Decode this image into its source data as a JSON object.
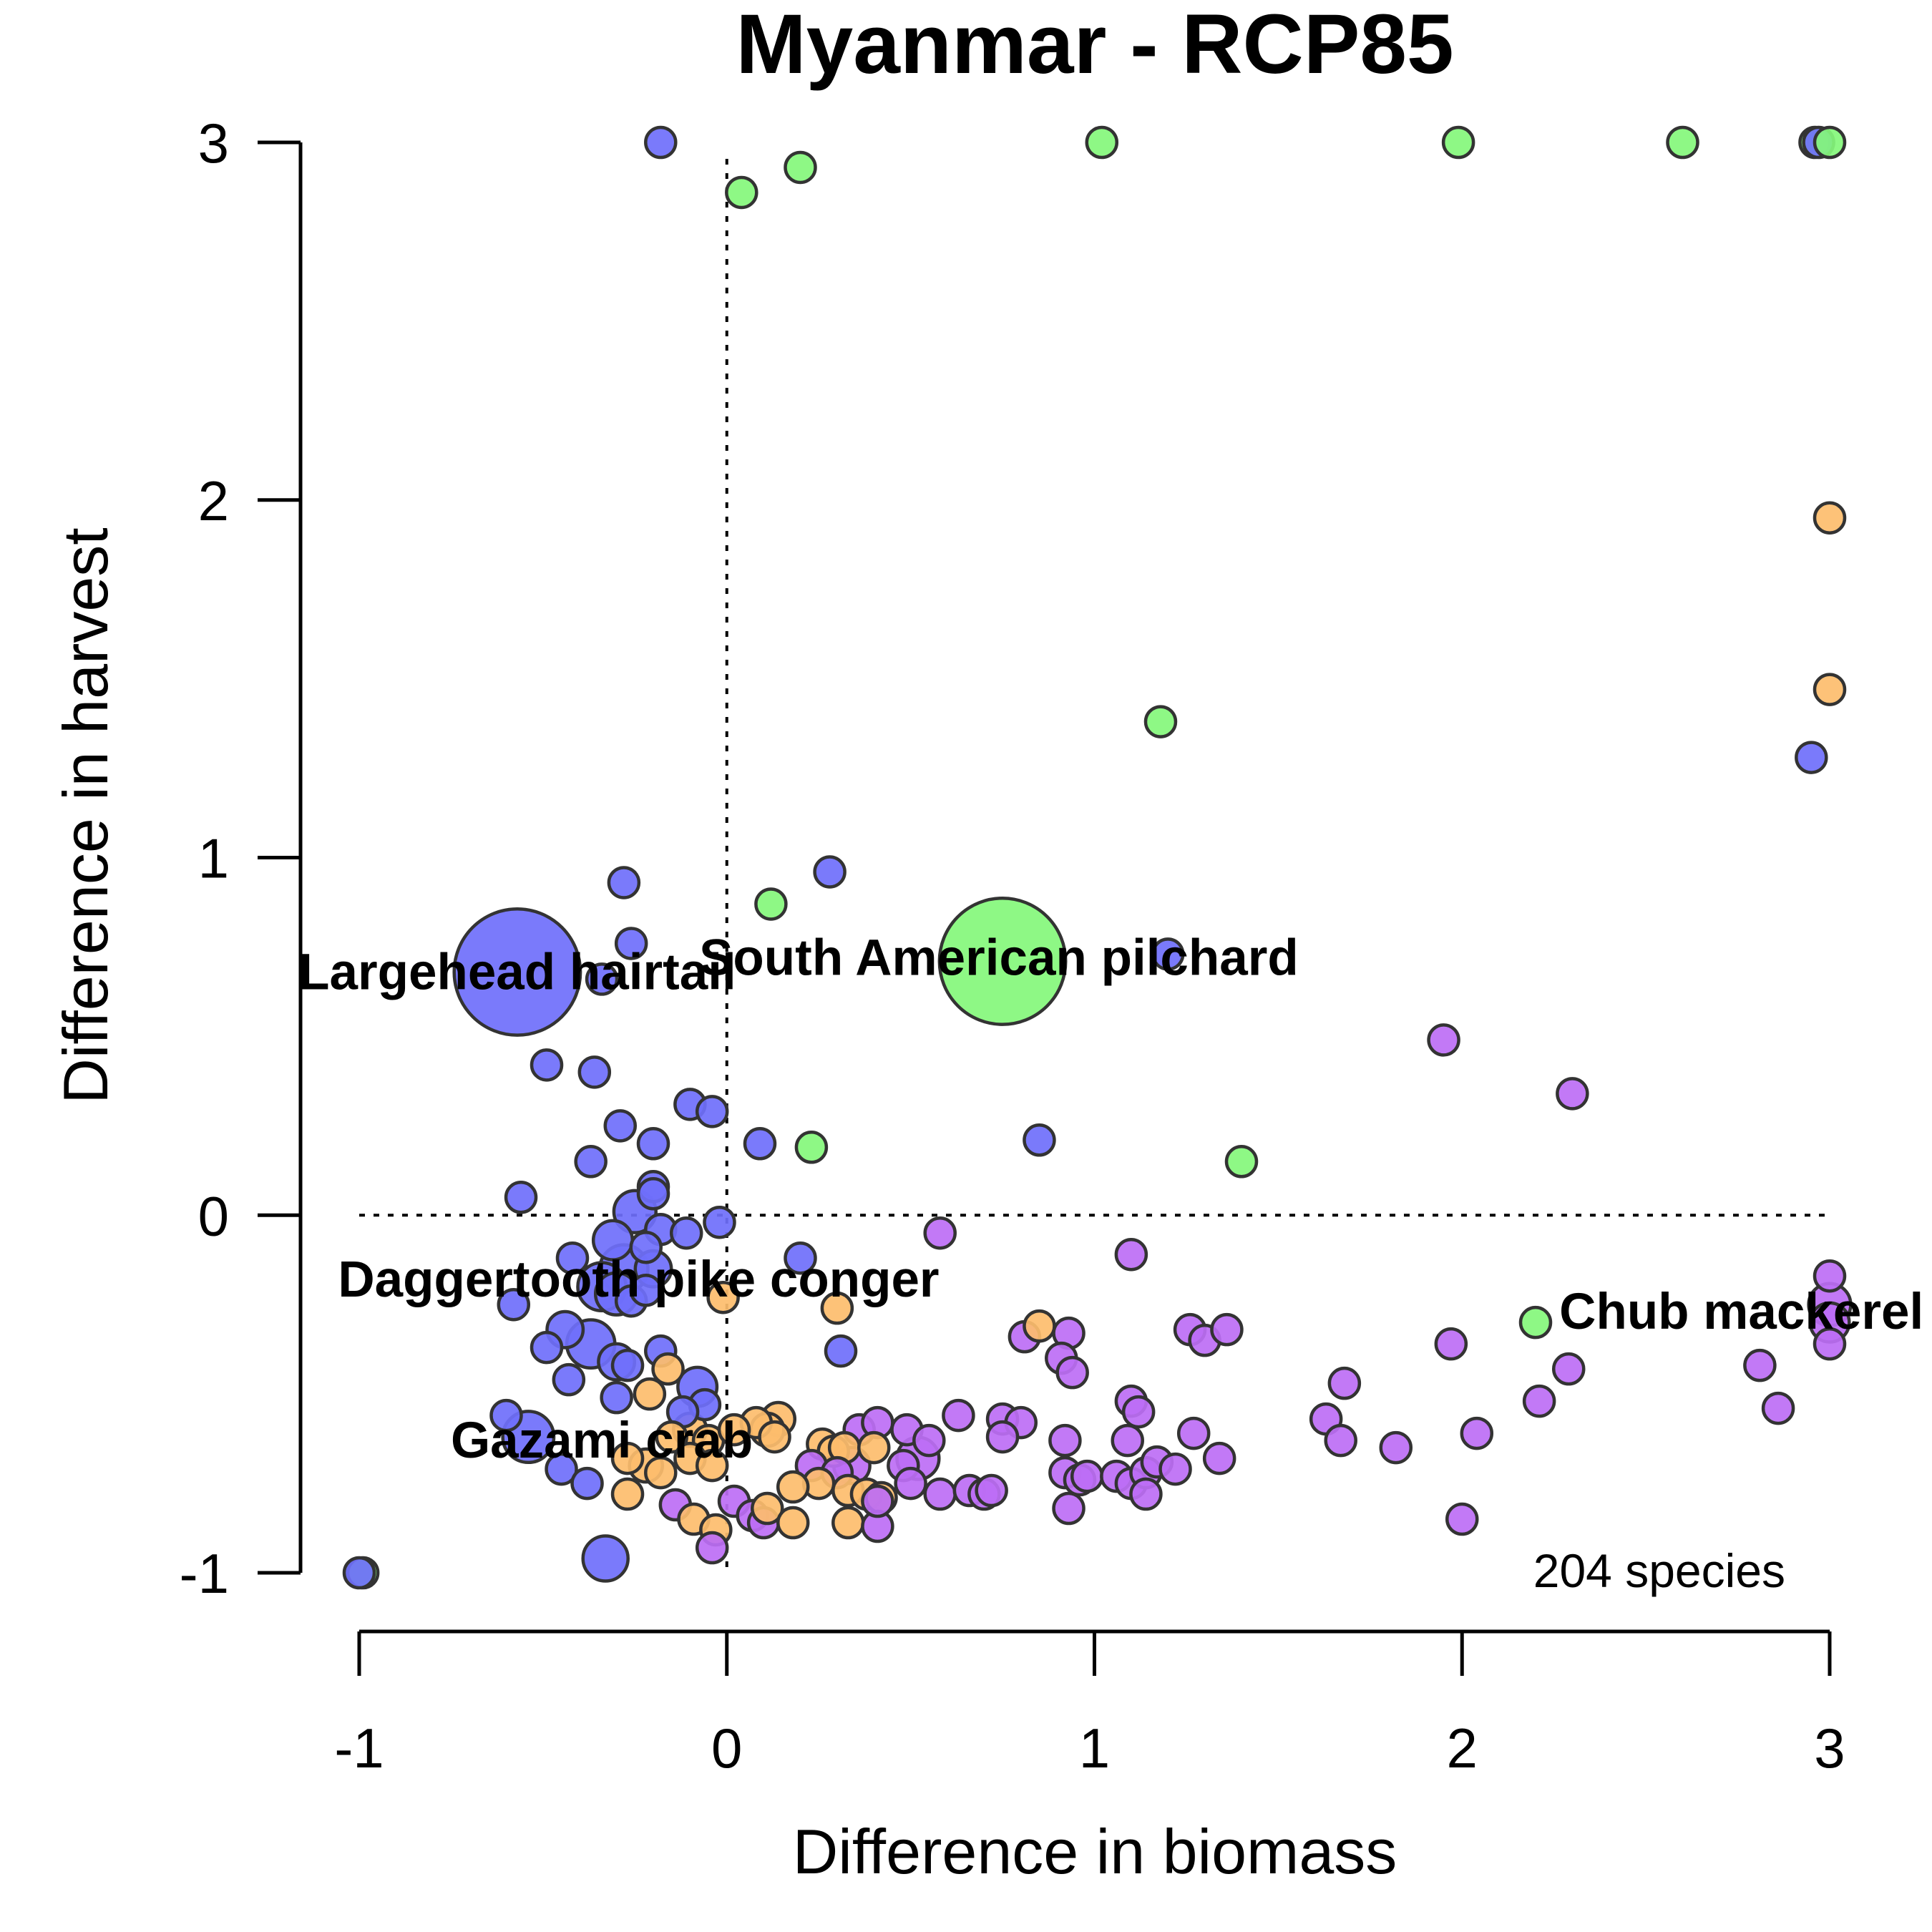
{
  "chart_data": {
    "type": "scatter",
    "title": "Myanmar - RCP85",
    "xlabel": "Difference in biomass",
    "ylabel": "Difference in harvest",
    "xlim": [
      -1,
      3
    ],
    "ylim": [
      -1,
      3
    ],
    "xticks": [
      "-1",
      "0",
      "1",
      "2",
      "3"
    ],
    "yticks": [
      "-1",
      "0",
      "1",
      "2",
      "3"
    ],
    "reference_lines": {
      "x": 0,
      "y": 0,
      "style": "dotted"
    },
    "note": "204 species",
    "colors": {
      "blue": "#6f6ffb",
      "green": "#84f77b",
      "orange": "#fdbd6d",
      "purple": "#bd6ef5",
      "outline": "#333333"
    },
    "annotations": [
      {
        "text": "Largehead hairtail",
        "x": -0.57,
        "y": 0.68
      },
      {
        "text": "South American pilchard",
        "x": 0.74,
        "y": 0.72
      },
      {
        "text": "Daggertooth pike conger",
        "x": -0.24,
        "y": -0.18
      },
      {
        "text": "Gazami crab",
        "x": -0.34,
        "y": -0.63
      },
      {
        "text": "Chub mackerel",
        "x": 2.76,
        "y": -0.27
      }
    ],
    "points": [
      {
        "x": -0.18,
        "y": 3.0,
        "c": "blue",
        "s": 1
      },
      {
        "x": 0.04,
        "y": 2.86,
        "c": "green",
        "s": 1
      },
      {
        "x": 0.2,
        "y": 2.93,
        "c": "green",
        "s": 1
      },
      {
        "x": 1.02,
        "y": 3.0,
        "c": "green",
        "s": 1
      },
      {
        "x": 1.99,
        "y": 3.0,
        "c": "green",
        "s": 1
      },
      {
        "x": 2.6,
        "y": 3.0,
        "c": "green",
        "s": 1
      },
      {
        "x": 2.96,
        "y": 3.0,
        "c": "green",
        "s": 1
      },
      {
        "x": 2.97,
        "y": 3.0,
        "c": "blue",
        "s": 1
      },
      {
        "x": 3.0,
        "y": 3.0,
        "c": "green",
        "s": 1
      },
      {
        "x": 3.0,
        "y": 1.95,
        "c": "orange",
        "s": 1
      },
      {
        "x": 3.0,
        "y": 1.47,
        "c": "orange",
        "s": 1
      },
      {
        "x": 2.95,
        "y": 1.28,
        "c": "blue",
        "s": 1
      },
      {
        "x": 1.18,
        "y": 1.38,
        "c": "green",
        "s": 1
      },
      {
        "x": -0.57,
        "y": 0.68,
        "c": "blue",
        "s": 4.2
      },
      {
        "x": 0.75,
        "y": 0.71,
        "c": "green",
        "s": 4.2
      },
      {
        "x": -0.28,
        "y": 0.93,
        "c": "blue",
        "s": 1
      },
      {
        "x": 0.28,
        "y": 0.96,
        "c": "blue",
        "s": 1
      },
      {
        "x": 0.12,
        "y": 0.87,
        "c": "green",
        "s": 1
      },
      {
        "x": -0.26,
        "y": 0.76,
        "c": "blue",
        "s": 1
      },
      {
        "x": 1.2,
        "y": 0.73,
        "c": "blue",
        "s": 1
      },
      {
        "x": -0.34,
        "y": 0.66,
        "c": "blue",
        "s": 1
      },
      {
        "x": 1.95,
        "y": 0.49,
        "c": "purple",
        "s": 1
      },
      {
        "x": 2.3,
        "y": 0.34,
        "c": "purple",
        "s": 1
      },
      {
        "x": -0.49,
        "y": 0.42,
        "c": "blue",
        "s": 1
      },
      {
        "x": -0.36,
        "y": 0.4,
        "c": "blue",
        "s": 1
      },
      {
        "x": -0.1,
        "y": 0.31,
        "c": "blue",
        "s": 1
      },
      {
        "x": -0.04,
        "y": 0.29,
        "c": "blue",
        "s": 1
      },
      {
        "x": -0.29,
        "y": 0.25,
        "c": "blue",
        "s": 1
      },
      {
        "x": -0.2,
        "y": 0.2,
        "c": "blue",
        "s": 1
      },
      {
        "x": 0.09,
        "y": 0.2,
        "c": "blue",
        "s": 1
      },
      {
        "x": 0.23,
        "y": 0.19,
        "c": "green",
        "s": 1
      },
      {
        "x": 0.85,
        "y": 0.21,
        "c": "blue",
        "s": 1
      },
      {
        "x": 1.4,
        "y": 0.15,
        "c": "green",
        "s": 1
      },
      {
        "x": -0.37,
        "y": 0.15,
        "c": "blue",
        "s": 1
      },
      {
        "x": -0.2,
        "y": 0.08,
        "c": "blue",
        "s": 1
      },
      {
        "x": -0.2,
        "y": 0.06,
        "c": "blue",
        "s": 1
      },
      {
        "x": -0.56,
        "y": 0.05,
        "c": "blue",
        "s": 1
      },
      {
        "x": -0.25,
        "y": 0.01,
        "c": "blue",
        "s": 1.4
      },
      {
        "x": -0.02,
        "y": -0.02,
        "c": "blue",
        "s": 1
      },
      {
        "x": -0.18,
        "y": -0.04,
        "c": "blue",
        "s": 1
      },
      {
        "x": -0.11,
        "y": -0.05,
        "c": "blue",
        "s": 1
      },
      {
        "x": -0.31,
        "y": -0.07,
        "c": "blue",
        "s": 1.3
      },
      {
        "x": -0.22,
        "y": -0.09,
        "c": "blue",
        "s": 1
      },
      {
        "x": 0.58,
        "y": -0.05,
        "c": "purple",
        "s": 1
      },
      {
        "x": -0.42,
        "y": -0.12,
        "c": "blue",
        "s": 1
      },
      {
        "x": 0.2,
        "y": -0.12,
        "c": "blue",
        "s": 1
      },
      {
        "x": 1.1,
        "y": -0.11,
        "c": "purple",
        "s": 1
      },
      {
        "x": -0.28,
        "y": -0.15,
        "c": "blue",
        "s": 1.6
      },
      {
        "x": -0.2,
        "y": -0.15,
        "c": "blue",
        "s": 1.2
      },
      {
        "x": -0.34,
        "y": -0.2,
        "c": "blue",
        "s": 1.6
      },
      {
        "x": -0.3,
        "y": -0.22,
        "c": "blue",
        "s": 1.4
      },
      {
        "x": -0.26,
        "y": -0.24,
        "c": "blue",
        "s": 1
      },
      {
        "x": -0.22,
        "y": -0.21,
        "c": "blue",
        "s": 1
      },
      {
        "x": -0.58,
        "y": -0.25,
        "c": "blue",
        "s": 1
      },
      {
        "x": -0.01,
        "y": -0.23,
        "c": "orange",
        "s": 1
      },
      {
        "x": 0.3,
        "y": -0.26,
        "c": "orange",
        "s": 1
      },
      {
        "x": -0.44,
        "y": -0.32,
        "c": "blue",
        "s": 1.2
      },
      {
        "x": -0.37,
        "y": -0.36,
        "c": "blue",
        "s": 1.6
      },
      {
        "x": -0.49,
        "y": -0.37,
        "c": "blue",
        "s": 1
      },
      {
        "x": -0.3,
        "y": -0.41,
        "c": "blue",
        "s": 1.2
      },
      {
        "x": -0.27,
        "y": -0.42,
        "c": "blue",
        "s": 1
      },
      {
        "x": -0.18,
        "y": -0.38,
        "c": "blue",
        "s": 1
      },
      {
        "x": -0.16,
        "y": -0.43,
        "c": "orange",
        "s": 1
      },
      {
        "x": 0.31,
        "y": -0.38,
        "c": "blue",
        "s": 1
      },
      {
        "x": 0.81,
        "y": -0.34,
        "c": "purple",
        "s": 1
      },
      {
        "x": 0.85,
        "y": -0.31,
        "c": "orange",
        "s": 1
      },
      {
        "x": 0.93,
        "y": -0.33,
        "c": "purple",
        "s": 1
      },
      {
        "x": 0.91,
        "y": -0.4,
        "c": "purple",
        "s": 1
      },
      {
        "x": 0.94,
        "y": -0.44,
        "c": "purple",
        "s": 1
      },
      {
        "x": 1.26,
        "y": -0.32,
        "c": "purple",
        "s": 1
      },
      {
        "x": 1.3,
        "y": -0.35,
        "c": "purple",
        "s": 1
      },
      {
        "x": 1.36,
        "y": -0.32,
        "c": "purple",
        "s": 1
      },
      {
        "x": 1.68,
        "y": -0.47,
        "c": "purple",
        "s": 1
      },
      {
        "x": 1.97,
        "y": -0.36,
        "c": "purple",
        "s": 1
      },
      {
        "x": 2.2,
        "y": -0.3,
        "c": "green",
        "s": 1
      },
      {
        "x": 2.29,
        "y": -0.43,
        "c": "purple",
        "s": 1
      },
      {
        "x": 2.21,
        "y": -0.52,
        "c": "purple",
        "s": 1
      },
      {
        "x": 2.81,
        "y": -0.42,
        "c": "purple",
        "s": 1
      },
      {
        "x": 2.86,
        "y": -0.54,
        "c": "purple",
        "s": 1
      },
      {
        "x": 3.0,
        "y": -0.17,
        "c": "purple",
        "s": 1
      },
      {
        "x": 3.0,
        "y": -0.25,
        "c": "purple",
        "s": 1.4
      },
      {
        "x": 3.0,
        "y": -0.3,
        "c": "purple",
        "s": 1.3
      },
      {
        "x": 3.0,
        "y": -0.36,
        "c": "purple",
        "s": 1
      },
      {
        "x": -0.43,
        "y": -0.46,
        "c": "blue",
        "s": 1
      },
      {
        "x": -0.3,
        "y": -0.51,
        "c": "blue",
        "s": 1
      },
      {
        "x": -0.21,
        "y": -0.5,
        "c": "orange",
        "s": 1
      },
      {
        "x": -0.08,
        "y": -0.48,
        "c": "blue",
        "s": 1.3
      },
      {
        "x": -0.06,
        "y": -0.53,
        "c": "blue",
        "s": 1
      },
      {
        "x": -0.12,
        "y": -0.55,
        "c": "blue",
        "s": 1
      },
      {
        "x": -0.6,
        "y": -0.56,
        "c": "blue",
        "s": 1
      },
      {
        "x": -0.54,
        "y": -0.62,
        "c": "blue",
        "s": 1.7
      },
      {
        "x": 0.08,
        "y": -0.58,
        "c": "orange",
        "s": 1
      },
      {
        "x": 0.14,
        "y": -0.57,
        "c": "orange",
        "s": 1.1
      },
      {
        "x": 0.11,
        "y": -0.6,
        "c": "orange",
        "s": 1.1
      },
      {
        "x": 0.13,
        "y": -0.62,
        "c": "orange",
        "s": 1
      },
      {
        "x": 0.36,
        "y": -0.6,
        "c": "purple",
        "s": 1
      },
      {
        "x": 0.41,
        "y": -0.58,
        "c": "purple",
        "s": 1
      },
      {
        "x": 0.49,
        "y": -0.6,
        "c": "purple",
        "s": 1
      },
      {
        "x": 0.55,
        "y": -0.63,
        "c": "purple",
        "s": 1
      },
      {
        "x": 0.63,
        "y": -0.56,
        "c": "purple",
        "s": 1
      },
      {
        "x": 0.75,
        "y": -0.57,
        "c": "purple",
        "s": 1
      },
      {
        "x": 0.8,
        "y": -0.58,
        "c": "purple",
        "s": 1
      },
      {
        "x": 0.75,
        "y": -0.62,
        "c": "purple",
        "s": 1
      },
      {
        "x": 1.1,
        "y": -0.52,
        "c": "purple",
        "s": 1
      },
      {
        "x": 1.12,
        "y": -0.55,
        "c": "purple",
        "s": 1
      },
      {
        "x": 1.27,
        "y": -0.61,
        "c": "purple",
        "s": 1
      },
      {
        "x": 1.63,
        "y": -0.57,
        "c": "purple",
        "s": 1
      },
      {
        "x": 1.67,
        "y": -0.63,
        "c": "purple",
        "s": 1
      },
      {
        "x": 1.82,
        "y": -0.65,
        "c": "purple",
        "s": 1
      },
      {
        "x": 2.04,
        "y": -0.61,
        "c": "purple",
        "s": 1
      },
      {
        "x": -0.15,
        "y": -0.62,
        "c": "orange",
        "s": 1
      },
      {
        "x": -0.1,
        "y": -0.6,
        "c": "orange",
        "s": 1.1
      },
      {
        "x": -0.05,
        "y": -0.63,
        "c": "orange",
        "s": 1
      },
      {
        "x": 0.02,
        "y": -0.6,
        "c": "orange",
        "s": 1
      },
      {
        "x": -0.27,
        "y": -0.68,
        "c": "orange",
        "s": 1
      },
      {
        "x": -0.22,
        "y": -0.7,
        "c": "orange",
        "s": 1.1
      },
      {
        "x": -0.18,
        "y": -0.72,
        "c": "orange",
        "s": 1
      },
      {
        "x": -0.1,
        "y": -0.68,
        "c": "orange",
        "s": 1
      },
      {
        "x": -0.04,
        "y": -0.7,
        "c": "orange",
        "s": 1
      },
      {
        "x": 0.26,
        "y": -0.64,
        "c": "orange",
        "s": 1
      },
      {
        "x": 0.29,
        "y": -0.66,
        "c": "orange",
        "s": 1
      },
      {
        "x": 0.32,
        "y": -0.65,
        "c": "orange",
        "s": 1
      },
      {
        "x": 0.4,
        "y": -0.65,
        "c": "orange",
        "s": 1
      },
      {
        "x": 0.23,
        "y": -0.7,
        "c": "purple",
        "s": 1
      },
      {
        "x": 0.3,
        "y": -0.72,
        "c": "purple",
        "s": 1
      },
      {
        "x": 0.34,
        "y": -0.7,
        "c": "purple",
        "s": 1.2
      },
      {
        "x": 0.25,
        "y": -0.75,
        "c": "orange",
        "s": 1
      },
      {
        "x": 0.18,
        "y": -0.76,
        "c": "orange",
        "s": 1
      },
      {
        "x": 0.33,
        "y": -0.77,
        "c": "orange",
        "s": 1
      },
      {
        "x": 0.38,
        "y": -0.78,
        "c": "orange",
        "s": 1
      },
      {
        "x": 0.42,
        "y": -0.79,
        "c": "orange",
        "s": 1
      },
      {
        "x": 0.48,
        "y": -0.7,
        "c": "purple",
        "s": 1
      },
      {
        "x": 0.52,
        "y": -0.68,
        "c": "purple",
        "s": 1.4
      },
      {
        "x": 0.5,
        "y": -0.75,
        "c": "purple",
        "s": 1
      },
      {
        "x": 0.58,
        "y": -0.78,
        "c": "purple",
        "s": 1
      },
      {
        "x": 0.66,
        "y": -0.77,
        "c": "purple",
        "s": 1
      },
      {
        "x": 0.7,
        "y": -0.78,
        "c": "purple",
        "s": 1
      },
      {
        "x": 0.72,
        "y": -0.77,
        "c": "purple",
        "s": 1
      },
      {
        "x": 0.92,
        "y": -0.72,
        "c": "purple",
        "s": 1
      },
      {
        "x": 0.96,
        "y": -0.74,
        "c": "purple",
        "s": 1
      },
      {
        "x": 0.98,
        "y": -0.73,
        "c": "purple",
        "s": 1
      },
      {
        "x": 1.06,
        "y": -0.73,
        "c": "purple",
        "s": 1
      },
      {
        "x": 1.1,
        "y": -0.75,
        "c": "purple",
        "s": 1
      },
      {
        "x": 1.14,
        "y": -0.72,
        "c": "purple",
        "s": 1
      },
      {
        "x": 1.17,
        "y": -0.69,
        "c": "purple",
        "s": 1
      },
      {
        "x": 1.22,
        "y": -0.71,
        "c": "purple",
        "s": 1
      },
      {
        "x": 1.14,
        "y": -0.78,
        "c": "purple",
        "s": 1
      },
      {
        "x": 1.34,
        "y": -0.68,
        "c": "purple",
        "s": 1
      },
      {
        "x": 0.93,
        "y": -0.82,
        "c": "purple",
        "s": 1
      },
      {
        "x": 1.09,
        "y": -0.63,
        "c": "purple",
        "s": 1
      },
      {
        "x": 0.92,
        "y": -0.63,
        "c": "purple",
        "s": 1
      },
      {
        "x": 2.0,
        "y": -0.85,
        "c": "purple",
        "s": 1
      },
      {
        "x": -0.45,
        "y": -0.71,
        "c": "blue",
        "s": 1
      },
      {
        "x": -0.38,
        "y": -0.75,
        "c": "blue",
        "s": 1
      },
      {
        "x": -0.27,
        "y": -0.78,
        "c": "orange",
        "s": 1
      },
      {
        "x": -0.14,
        "y": -0.81,
        "c": "purple",
        "s": 1
      },
      {
        "x": -0.09,
        "y": -0.85,
        "c": "orange",
        "s": 1
      },
      {
        "x": -0.03,
        "y": -0.88,
        "c": "orange",
        "s": 1
      },
      {
        "x": -0.04,
        "y": -0.93,
        "c": "purple",
        "s": 1
      },
      {
        "x": 0.02,
        "y": -0.8,
        "c": "purple",
        "s": 1
      },
      {
        "x": 0.07,
        "y": -0.84,
        "c": "purple",
        "s": 1
      },
      {
        "x": 0.1,
        "y": -0.86,
        "c": "purple",
        "s": 1
      },
      {
        "x": 0.11,
        "y": -0.82,
        "c": "orange",
        "s": 1
      },
      {
        "x": 0.18,
        "y": -0.86,
        "c": "orange",
        "s": 1
      },
      {
        "x": 0.33,
        "y": -0.86,
        "c": "orange",
        "s": 1
      },
      {
        "x": 0.41,
        "y": -0.87,
        "c": "purple",
        "s": 1
      },
      {
        "x": 0.41,
        "y": -0.8,
        "c": "purple",
        "s": 1
      },
      {
        "x": -0.33,
        "y": -0.96,
        "c": "blue",
        "s": 1.5
      },
      {
        "x": -0.99,
        "y": -1.0,
        "c": "green",
        "s": 1
      },
      {
        "x": -1.0,
        "y": -1.0,
        "c": "blue",
        "s": 1
      }
    ]
  }
}
